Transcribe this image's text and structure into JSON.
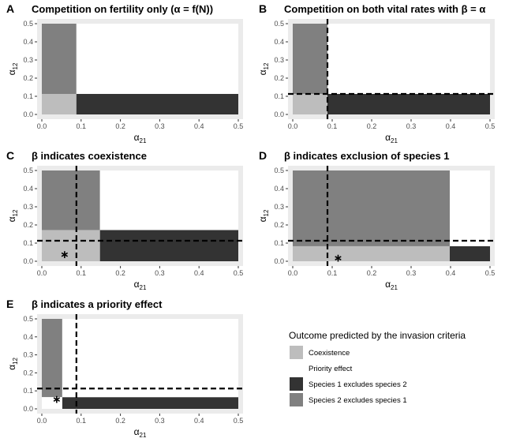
{
  "chart_data": [
    {
      "letter": "A",
      "title": "Competition on fertility only (α = f(N))",
      "type": "area",
      "xlabel": "α21",
      "ylabel": "α12",
      "xlim": [
        0,
        0.5
      ],
      "ylim": [
        0,
        0.5
      ],
      "x_ticks": [
        "0.0",
        "0.1",
        "0.2",
        "0.3",
        "0.4",
        "0.5"
      ],
      "y_ticks": [
        "0.0",
        "0.1",
        "0.2",
        "0.3",
        "0.4",
        "0.5"
      ],
      "regions": [
        {
          "outcome": "coexistence",
          "x": [
            0,
            0.088
          ],
          "y": [
            0,
            0.113
          ]
        },
        {
          "outcome": "species2",
          "x": [
            0,
            0.088
          ],
          "y": [
            0.113,
            0.5
          ]
        },
        {
          "outcome": "species1",
          "x": [
            0.088,
            0.5
          ],
          "y": [
            0,
            0.113
          ]
        },
        {
          "outcome": "priority",
          "x": [
            0.088,
            0.5
          ],
          "y": [
            0.113,
            0.5
          ]
        }
      ],
      "vline": null,
      "hline": null,
      "star": null
    },
    {
      "letter": "B",
      "title": "Competition on both vital rates with β = α",
      "type": "area",
      "xlabel": "α21",
      "ylabel": "α12",
      "xlim": [
        0,
        0.5
      ],
      "ylim": [
        0,
        0.5
      ],
      "x_ticks": [
        "0.0",
        "0.1",
        "0.2",
        "0.3",
        "0.4",
        "0.5"
      ],
      "y_ticks": [
        "0.0",
        "0.1",
        "0.2",
        "0.3",
        "0.4",
        "0.5"
      ],
      "regions": [
        {
          "outcome": "coexistence",
          "x": [
            0,
            0.088
          ],
          "y": [
            0,
            0.113
          ]
        },
        {
          "outcome": "species2",
          "x": [
            0,
            0.088
          ],
          "y": [
            0.113,
            0.5
          ]
        },
        {
          "outcome": "species1",
          "x": [
            0.088,
            0.5
          ],
          "y": [
            0,
            0.113
          ]
        },
        {
          "outcome": "priority",
          "x": [
            0.088,
            0.5
          ],
          "y": [
            0.113,
            0.5
          ]
        }
      ],
      "vline": 0.088,
      "hline": 0.113,
      "star": null
    },
    {
      "letter": "C",
      "title": "β indicates coexistence",
      "type": "area",
      "xlabel": "α21",
      "ylabel": "α12",
      "xlim": [
        0,
        0.5
      ],
      "ylim": [
        0,
        0.5
      ],
      "x_ticks": [
        "0.0",
        "0.1",
        "0.2",
        "0.3",
        "0.4",
        "0.5"
      ],
      "y_ticks": [
        "0.0",
        "0.1",
        "0.2",
        "0.3",
        "0.4",
        "0.5"
      ],
      "regions": [
        {
          "outcome": "coexistence",
          "x": [
            0,
            0.148
          ],
          "y": [
            0,
            0.172
          ]
        },
        {
          "outcome": "species2",
          "x": [
            0,
            0.148
          ],
          "y": [
            0.172,
            0.5
          ]
        },
        {
          "outcome": "species1",
          "x": [
            0.148,
            0.5
          ],
          "y": [
            0,
            0.172
          ]
        },
        {
          "outcome": "priority",
          "x": [
            0.148,
            0.5
          ],
          "y": [
            0.172,
            0.5
          ]
        }
      ],
      "vline": 0.088,
      "hline": 0.113,
      "star": [
        0.058,
        0.04
      ]
    },
    {
      "letter": "D",
      "title": "β indicates exclusion of species 1",
      "type": "area",
      "xlabel": "α21",
      "ylabel": "α12",
      "xlim": [
        0,
        0.5
      ],
      "ylim": [
        0,
        0.5
      ],
      "x_ticks": [
        "0.0",
        "0.1",
        "0.2",
        "0.3",
        "0.4",
        "0.5"
      ],
      "y_ticks": [
        "0.0",
        "0.1",
        "0.2",
        "0.3",
        "0.4",
        "0.5"
      ],
      "regions": [
        {
          "outcome": "coexistence",
          "x": [
            0,
            0.398
          ],
          "y": [
            0,
            0.083
          ]
        },
        {
          "outcome": "species2",
          "x": [
            0,
            0.398
          ],
          "y": [
            0.083,
            0.5
          ]
        },
        {
          "outcome": "species1",
          "x": [
            0.398,
            0.5
          ],
          "y": [
            0,
            0.083
          ]
        },
        {
          "outcome": "priority",
          "x": [
            0.398,
            0.5
          ],
          "y": [
            0.083,
            0.5
          ]
        }
      ],
      "vline": 0.088,
      "hline": 0.113,
      "star": [
        0.115,
        0.02
      ]
    },
    {
      "letter": "E",
      "title": "β indicates a priority effect",
      "type": "area",
      "xlabel": "α21",
      "ylabel": "α12",
      "xlim": [
        0,
        0.5
      ],
      "ylim": [
        0,
        0.5
      ],
      "x_ticks": [
        "0.0",
        "0.1",
        "0.2",
        "0.3",
        "0.4",
        "0.5"
      ],
      "y_ticks": [
        "0.0",
        "0.1",
        "0.2",
        "0.3",
        "0.4",
        "0.5"
      ],
      "regions": [
        {
          "outcome": "species2",
          "x": [
            0,
            0.052
          ],
          "y": [
            0.065,
            0.5
          ]
        },
        {
          "outcome": "species1",
          "x": [
            0.052,
            0.5
          ],
          "y": [
            0,
            0.065
          ]
        },
        {
          "outcome": "priority",
          "x": [
            0,
            0.052
          ],
          "y": [
            0,
            0.065
          ]
        },
        {
          "outcome": "priority",
          "x": [
            0.052,
            0.5
          ],
          "y": [
            0.065,
            0.5
          ]
        }
      ],
      "vline": 0.088,
      "hline": 0.113,
      "star": [
        0.038,
        0.055
      ]
    }
  ],
  "legend": {
    "title": "Outcome predicted by the invasion criteria",
    "items": [
      {
        "key": "coexistence",
        "label": "Coexistence",
        "color": "#bdbdbd"
      },
      {
        "key": "priority",
        "label": "Priority effect",
        "color": "#ffffff"
      },
      {
        "key": "species1",
        "label": "Species 1 excludes species 2",
        "color": "#333333"
      },
      {
        "key": "species2",
        "label": "Species 2 excludes species 1",
        "color": "#808080"
      }
    ]
  },
  "colors": {
    "panel_background": "#ebebeb",
    "dashed_line": "#000000"
  }
}
